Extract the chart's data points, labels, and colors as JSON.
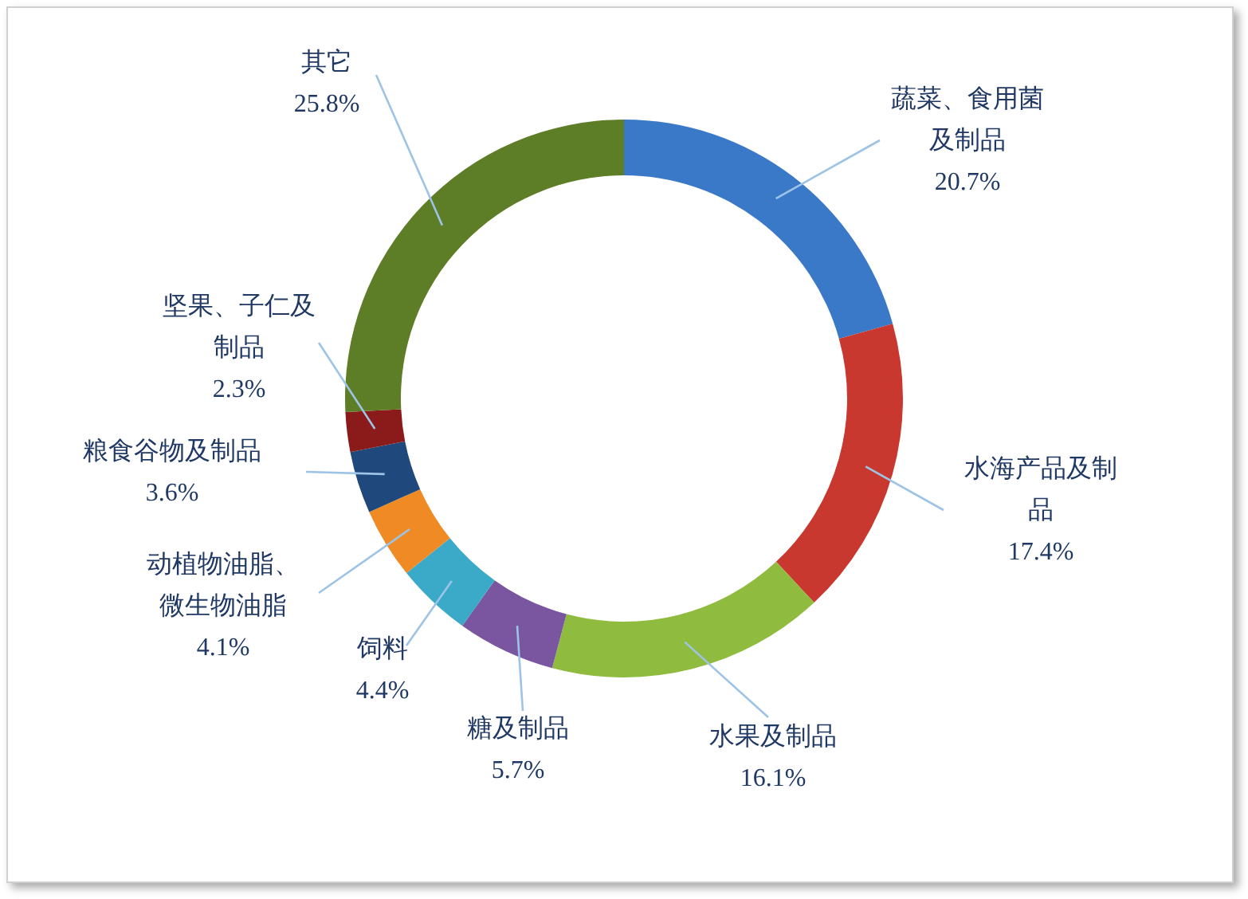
{
  "chart_data": {
    "type": "donut",
    "categories": [
      "蔬菜、食用菌及制品",
      "水海产品及制品",
      "水果及制品",
      "糖及制品",
      "饲料",
      "动植物油脂、微生物油脂",
      "粮食谷物及制品",
      "坚果、子仁及制品",
      "其它"
    ],
    "values": [
      20.7,
      17.4,
      16.1,
      5.7,
      4.4,
      4.1,
      3.6,
      2.3,
      25.8
    ],
    "value_labels": [
      "20.7%",
      "17.4%",
      "16.1%",
      "5.7%",
      "4.4%",
      "4.1%",
      "3.6%",
      "2.3%",
      "25.8%"
    ],
    "colors": [
      "#3a78c8",
      "#c8382f",
      "#8fbc3e",
      "#7a55a0",
      "#3aaac8",
      "#f08a24",
      "#1f497d",
      "#8b1a1a",
      "#5e7d27"
    ]
  }
}
